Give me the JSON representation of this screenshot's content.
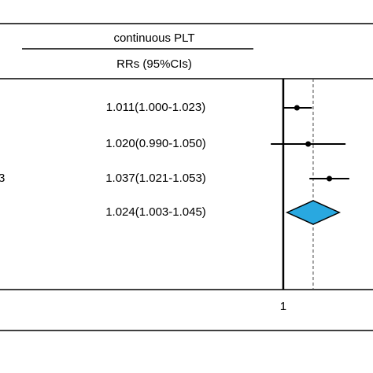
{
  "chart_data": {
    "type": "forest",
    "column_header": "continuous PLT",
    "column_subheader": "RRs (95%CIs)",
    "categories": [
      null,
      null,
      "3",
      null
    ],
    "values": [
      1.011,
      1.02,
      1.037,
      1.024
    ],
    "lower": [
      1.0,
      0.99,
      1.021,
      1.003
    ],
    "upper": [
      1.023,
      1.05,
      1.053,
      1.045
    ],
    "value_labels": [
      "1.011(1.000-1.023)",
      "1.020(0.990-1.050)",
      "1.037(1.021-1.053)",
      "1.024(1.003-1.045)"
    ],
    "markers": [
      "dot",
      "dot",
      "dot",
      "diamond"
    ],
    "diamond_color": "#29a8e0",
    "color": "#000000",
    "xlim": [
      0.98,
      1.07
    ],
    "xticks": [
      1
    ]
  }
}
